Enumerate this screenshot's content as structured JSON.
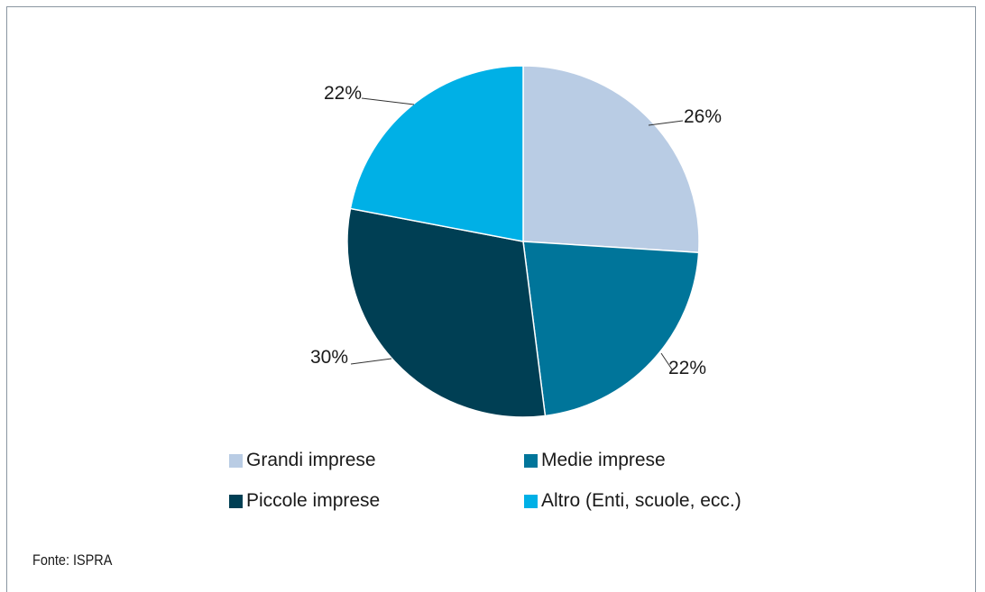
{
  "chart_data": {
    "type": "pie",
    "title": "",
    "slices": [
      {
        "label": "Grandi imprese",
        "value": 26,
        "value_label": "26%",
        "color": "#b9cce4"
      },
      {
        "label": "Medie imprese",
        "value": 22,
        "value_label": "22%",
        "color": "#00759a"
      },
      {
        "label": "Piccole imprese",
        "value": 30,
        "value_label": "30%",
        "color": "#003f54"
      },
      {
        "label": "Altro (Enti, scuole, ecc.)",
        "value": 22,
        "value_label": "22%",
        "color": "#00b0e6"
      }
    ],
    "legend_position": "bottom"
  },
  "source": "Fonte: ISPRA"
}
